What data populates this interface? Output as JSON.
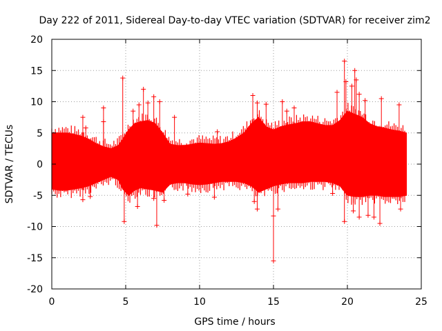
{
  "chart_data": {
    "type": "scatter",
    "title": "Day 222 of 2011, Sidereal Day-to-day VTEC variation (SDTVAR) for receiver zim2",
    "xlabel": "GPS time / hours",
    "ylabel": "SDTVAR / TECUs",
    "xlim": [
      0,
      25
    ],
    "ylim": [
      -20,
      20
    ],
    "xticks": [
      0,
      5,
      10,
      15,
      20,
      25
    ],
    "yticks": [
      -20,
      -15,
      -10,
      -5,
      0,
      5,
      10,
      15,
      20
    ],
    "grid": true,
    "marker": "+",
    "color": "#ff0000",
    "series": [
      {
        "name": "SDTVAR",
        "band": {
          "x": [
            0,
            0.5,
            1,
            1.5,
            2,
            2.5,
            3,
            3.5,
            4,
            4.5,
            4.8,
            5.2,
            5.6,
            6,
            6.5,
            7,
            7.5,
            8,
            8.5,
            9,
            9.5,
            10,
            10.5,
            11,
            11.5,
            12,
            12.5,
            13,
            13.5,
            14,
            14.5,
            15,
            15.5,
            16,
            16.5,
            17,
            17.5,
            18,
            18.5,
            19,
            19.5,
            20,
            20.5,
            21,
            21.5,
            22,
            22.5,
            23,
            23.5,
            24
          ],
          "upper": [
            5,
            5,
            5,
            4.8,
            4.5,
            4,
            3.3,
            2.8,
            2.5,
            3,
            4,
            5.5,
            6.5,
            6.8,
            7,
            6.5,
            5,
            3.2,
            3,
            3,
            3.2,
            3.4,
            3.3,
            3.2,
            3.3,
            3.6,
            4.2,
            5,
            6.5,
            7.5,
            6,
            5.5,
            6,
            6.3,
            6.5,
            6.8,
            6.8,
            6.5,
            6.2,
            6.2,
            7,
            8.5,
            8,
            7.5,
            6.5,
            6,
            5.8,
            5.5,
            5.3,
            5
          ],
          "lower": [
            -4,
            -4.2,
            -4.2,
            -4,
            -3.8,
            -3.5,
            -3,
            -2.5,
            -2,
            -2.5,
            -4,
            -5,
            -4.2,
            -3.8,
            -4,
            -4.2,
            -4.5,
            -3.2,
            -3,
            -3,
            -3.2,
            -3.3,
            -3.2,
            -3,
            -2.8,
            -2.8,
            -2.8,
            -3,
            -3.5,
            -4.5,
            -4,
            -3.5,
            -3.2,
            -3,
            -3,
            -3,
            -2.8,
            -2.8,
            -2.8,
            -3,
            -3.5,
            -5,
            -5.2,
            -5.2,
            -5,
            -5,
            -5.2,
            -5.2,
            -5.2,
            -5
          ]
        },
        "spikes": [
          {
            "x": 2.1,
            "y": 7.5
          },
          {
            "x": 2.3,
            "y": 5.8
          },
          {
            "x": 2.1,
            "y": -5.7
          },
          {
            "x": 2.6,
            "y": -5.2
          },
          {
            "x": 3.5,
            "y": 9
          },
          {
            "x": 3.5,
            "y": 6.8
          },
          {
            "x": 4.8,
            "y": 13.8
          },
          {
            "x": 4.9,
            "y": -9.2
          },
          {
            "x": 5.5,
            "y": 8.5
          },
          {
            "x": 5.9,
            "y": 9.5
          },
          {
            "x": 5.8,
            "y": -6.8
          },
          {
            "x": 6.2,
            "y": 12
          },
          {
            "x": 6.5,
            "y": 9.8
          },
          {
            "x": 6.9,
            "y": 10.8
          },
          {
            "x": 6.9,
            "y": -5.5
          },
          {
            "x": 7.1,
            "y": -9.8
          },
          {
            "x": 7.3,
            "y": 10
          },
          {
            "x": 7.6,
            "y": -5.8
          },
          {
            "x": 8.3,
            "y": 7.5
          },
          {
            "x": 9.2,
            "y": -4.8
          },
          {
            "x": 11.2,
            "y": 5.2
          },
          {
            "x": 11.0,
            "y": -5.3
          },
          {
            "x": 13.6,
            "y": 11
          },
          {
            "x": 13.9,
            "y": 9.8
          },
          {
            "x": 13.7,
            "y": -6
          },
          {
            "x": 13.9,
            "y": -7.2
          },
          {
            "x": 14.5,
            "y": 9.6
          },
          {
            "x": 15.0,
            "y": -15.5
          },
          {
            "x": 15.0,
            "y": -8.3
          },
          {
            "x": 15.3,
            "y": -7.2
          },
          {
            "x": 15.6,
            "y": 10
          },
          {
            "x": 15.9,
            "y": 8.5
          },
          {
            "x": 16.4,
            "y": 9
          },
          {
            "x": 19.3,
            "y": 11.5
          },
          {
            "x": 19.8,
            "y": 16.5
          },
          {
            "x": 19.9,
            "y": 13.2
          },
          {
            "x": 20.3,
            "y": 12.5
          },
          {
            "x": 20.5,
            "y": 15
          },
          {
            "x": 20.6,
            "y": 13.5
          },
          {
            "x": 20.8,
            "y": 11.2
          },
          {
            "x": 19.8,
            "y": -9.2
          },
          {
            "x": 20.4,
            "y": -7.5
          },
          {
            "x": 20.8,
            "y": -8.5
          },
          {
            "x": 21.2,
            "y": 10.2
          },
          {
            "x": 21.4,
            "y": -8.2
          },
          {
            "x": 21.8,
            "y": -8.5
          },
          {
            "x": 22.2,
            "y": -9.5
          },
          {
            "x": 22.3,
            "y": 10.5
          },
          {
            "x": 23.5,
            "y": 9.5
          },
          {
            "x": 23.6,
            "y": -7.2
          },
          {
            "x": 19.0,
            "y": -4.7
          },
          {
            "x": 0.6,
            "y": 3.0
          }
        ]
      }
    ]
  }
}
